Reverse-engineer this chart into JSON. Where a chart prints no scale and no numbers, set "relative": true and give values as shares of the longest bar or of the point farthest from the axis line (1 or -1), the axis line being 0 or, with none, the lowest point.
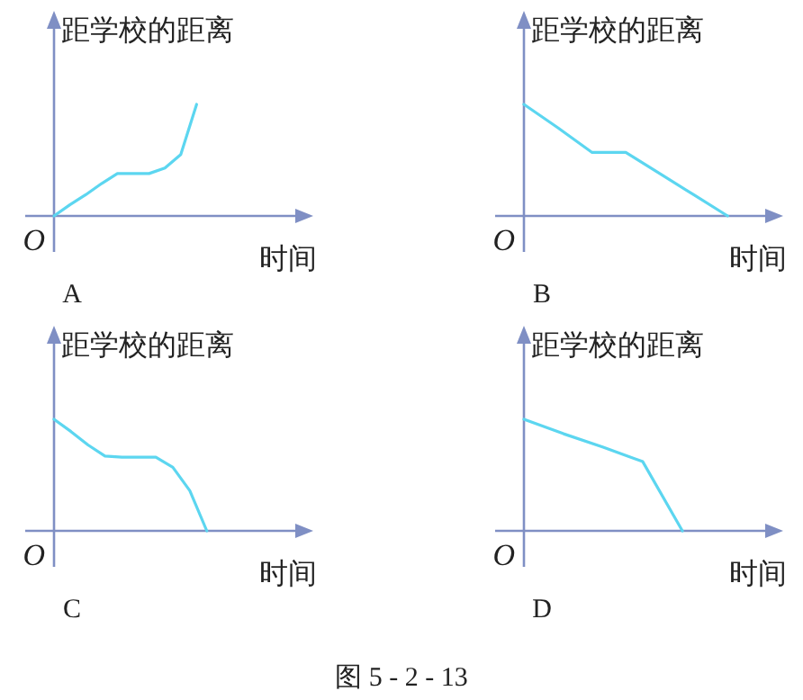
{
  "chart_data": [
    {
      "type": "line",
      "relative": true,
      "title": "A",
      "xlabel": "时间",
      "ylabel": "距学校的距离",
      "annotations": [
        "O"
      ],
      "categories": [
        null,
        null,
        null,
        null,
        null,
        null,
        null,
        null,
        null,
        null,
        null,
        null,
        null,
        null,
        null
      ],
      "series": [
        {
          "color": "#5cd6f0",
          "values": [
            0,
            0.1,
            0.19,
            0.29,
            0.38,
            0.38,
            0.38,
            0.43,
            0.55,
            1,
            null,
            null,
            null,
            null,
            null
          ]
        }
      ]
    },
    {
      "type": "line",
      "relative": true,
      "title": "B",
      "xlabel": "时间",
      "ylabel": "距学校的距离",
      "annotations": [
        "O"
      ],
      "categories": [
        null,
        null,
        null,
        null,
        null,
        null,
        null
      ],
      "series": [
        {
          "color": "#5cd6f0",
          "values": [
            1,
            0.79,
            0.57,
            0.57,
            0.38,
            0.19,
            0
          ]
        }
      ]
    },
    {
      "type": "line",
      "relative": true,
      "title": "C",
      "xlabel": "时间",
      "ylabel": "距学校的距离",
      "annotations": [
        "O"
      ],
      "categories": [
        null,
        null,
        null,
        null,
        null,
        null,
        null,
        null,
        null,
        null,
        null,
        null,
        null,
        null
      ],
      "series": [
        {
          "color": "#5cd6f0",
          "values": [
            1,
            0.89,
            0.77,
            0.67,
            0.66,
            0.66,
            0.66,
            0.57,
            0.36,
            0,
            null,
            null,
            null,
            null
          ]
        }
      ]
    },
    {
      "type": "line",
      "relative": true,
      "title": "D",
      "xlabel": "时间",
      "ylabel": "距学校的距离",
      "annotations": [
        "O",
        "图 5 - 2 - 13"
      ],
      "categories": [
        null,
        null,
        null,
        null,
        null,
        null
      ],
      "series": [
        {
          "color": "#5cd6f0",
          "values": [
            1,
            0.87,
            0.75,
            0.62,
            0,
            null
          ]
        }
      ]
    }
  ]
}
